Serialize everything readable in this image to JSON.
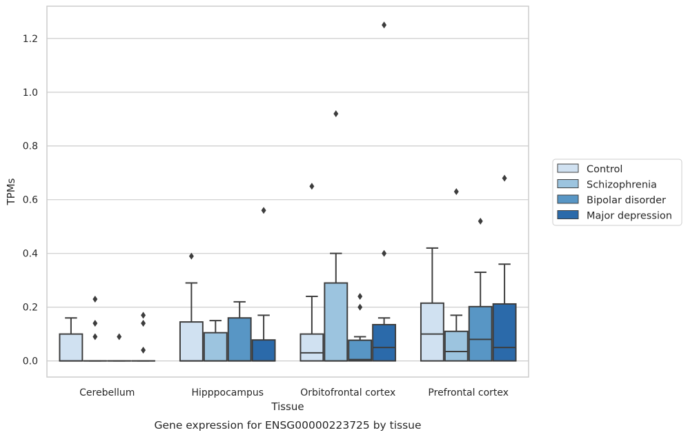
{
  "chart_data": {
    "type": "box",
    "title": "",
    "caption": "Gene expression for ENSG00000223725 by tissue",
    "xlabel": "Tissue",
    "ylabel": "TPMs",
    "ylim": [
      -0.06,
      1.32
    ],
    "yticks": [
      "0.0",
      "0.2",
      "0.4",
      "0.6",
      "0.8",
      "1.0",
      "1.2"
    ],
    "grid": true,
    "legend_position": "right",
    "categories": [
      "Cerebellum",
      "Hipppocampus",
      "Orbitofrontal cortex",
      "Prefrontal cortex"
    ],
    "series": [
      {
        "name": "Control",
        "color": "#d0e1f1",
        "boxes": [
          {
            "q1": 0.0,
            "median": 0.0,
            "q3": 0.1,
            "whisker_low": 0.0,
            "whisker_high": 0.16,
            "fliers": []
          },
          {
            "q1": 0.0,
            "median": 0.0,
            "q3": 0.145,
            "whisker_low": 0.0,
            "whisker_high": 0.29,
            "fliers": [
              0.39
            ]
          },
          {
            "q1": 0.0,
            "median": 0.03,
            "q3": 0.1,
            "whisker_low": 0.0,
            "whisker_high": 0.24,
            "fliers": [
              0.65
            ]
          },
          {
            "q1": 0.0,
            "median": 0.1,
            "q3": 0.215,
            "whisker_low": 0.0,
            "whisker_high": 0.42,
            "fliers": []
          }
        ]
      },
      {
        "name": "Schizophrenia",
        "color": "#9cc4df",
        "boxes": [
          {
            "q1": 0.0,
            "median": 0.0,
            "q3": 0.0,
            "whisker_low": 0.0,
            "whisker_high": 0.0,
            "fliers": [
              0.23,
              0.14,
              0.09
            ]
          },
          {
            "q1": 0.0,
            "median": 0.0,
            "q3": 0.105,
            "whisker_low": 0.0,
            "whisker_high": 0.15,
            "fliers": []
          },
          {
            "q1": 0.0,
            "median": 0.0,
            "q3": 0.29,
            "whisker_low": 0.0,
            "whisker_high": 0.4,
            "fliers": [
              0.92
            ]
          },
          {
            "q1": 0.0,
            "median": 0.035,
            "q3": 0.11,
            "whisker_low": 0.0,
            "whisker_high": 0.17,
            "fliers": [
              0.63
            ]
          }
        ]
      },
      {
        "name": "Bipolar disorder",
        "color": "#5896c5",
        "boxes": [
          {
            "q1": 0.0,
            "median": 0.0,
            "q3": 0.0,
            "whisker_low": 0.0,
            "whisker_high": 0.0,
            "fliers": [
              0.09
            ]
          },
          {
            "q1": 0.0,
            "median": 0.0,
            "q3": 0.16,
            "whisker_low": 0.0,
            "whisker_high": 0.22,
            "fliers": []
          },
          {
            "q1": 0.0,
            "median": 0.005,
            "q3": 0.077,
            "whisker_low": 0.0,
            "whisker_high": 0.09,
            "fliers": [
              0.24,
              0.2
            ]
          },
          {
            "q1": 0.0,
            "median": 0.08,
            "q3": 0.202,
            "whisker_low": 0.0,
            "whisker_high": 0.33,
            "fliers": [
              0.52
            ]
          }
        ]
      },
      {
        "name": "Major depression",
        "color": "#2b6aaa",
        "boxes": [
          {
            "q1": 0.0,
            "median": 0.0,
            "q3": 0.0,
            "whisker_low": 0.0,
            "whisker_high": 0.0,
            "fliers": [
              0.17,
              0.14,
              0.04
            ]
          },
          {
            "q1": 0.0,
            "median": 0.0,
            "q3": 0.078,
            "whisker_low": 0.0,
            "whisker_high": 0.17,
            "fliers": [
              0.56
            ]
          },
          {
            "q1": 0.0,
            "median": 0.05,
            "q3": 0.135,
            "whisker_low": 0.0,
            "whisker_high": 0.16,
            "fliers": [
              0.4,
              1.25
            ]
          },
          {
            "q1": 0.0,
            "median": 0.05,
            "q3": 0.212,
            "whisker_low": 0.0,
            "whisker_high": 0.36,
            "fliers": [
              0.68
            ]
          }
        ]
      }
    ]
  }
}
